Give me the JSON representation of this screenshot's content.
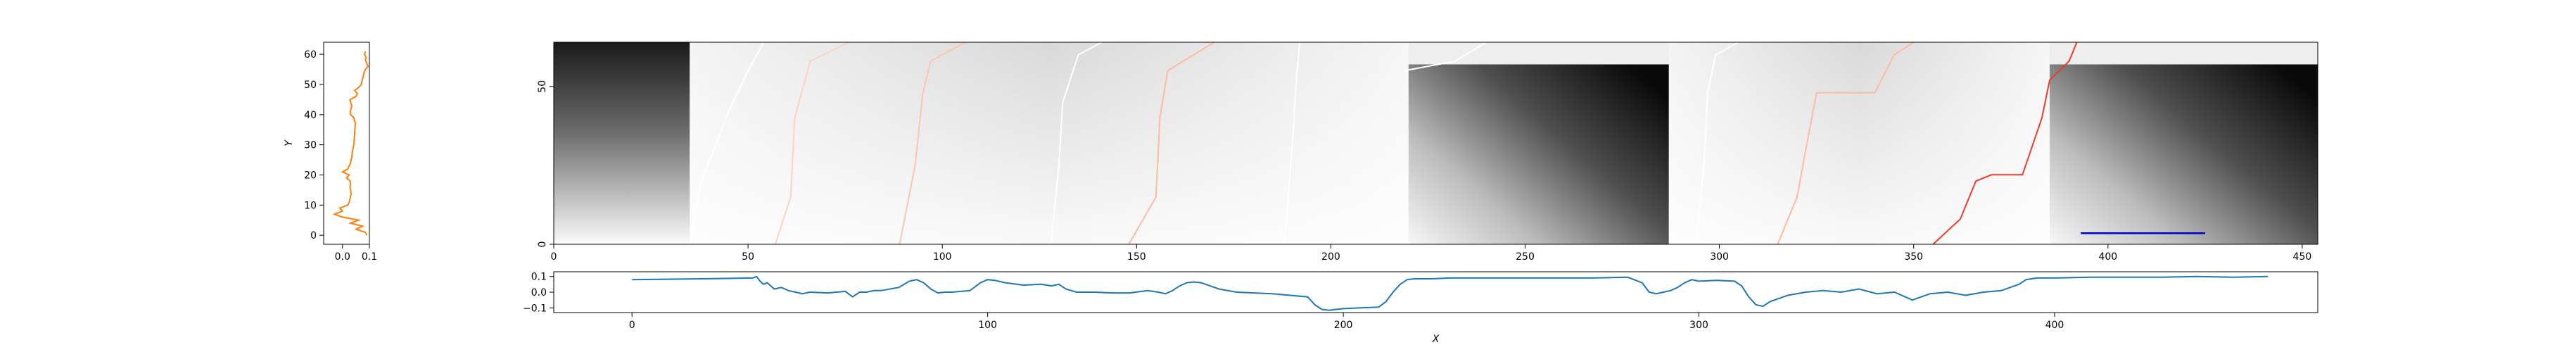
{
  "chart_data": [
    {
      "id": "y-profile",
      "type": "line",
      "xlabel": "",
      "ylabel": "Y",
      "xlim": [
        -0.07,
        0.1
      ],
      "ylim": [
        -3,
        64
      ],
      "x_ticks": [
        0.0,
        0.1
      ],
      "x_tick_labels": [
        "0.0",
        "0.1"
      ],
      "y_ticks": [
        0,
        10,
        20,
        30,
        40,
        50,
        60
      ],
      "y_tick_labels": [
        "0",
        "10",
        "20",
        "30",
        "40",
        "50",
        "60"
      ],
      "grid": false,
      "series": [
        {
          "color": "#ff7f0e",
          "y": [
            0,
            1,
            2,
            3,
            4,
            5,
            6,
            7,
            8,
            9,
            10,
            11,
            12,
            13,
            14,
            15,
            16,
            17,
            18,
            19,
            20,
            21,
            22,
            23,
            24,
            25,
            26,
            27,
            28,
            29,
            30,
            31,
            32,
            33,
            34,
            35,
            36,
            37,
            38,
            39,
            40,
            41,
            42,
            43,
            44,
            45,
            46,
            47,
            48,
            49,
            50,
            51,
            52,
            53,
            54,
            55,
            56,
            57,
            58,
            59,
            60,
            61
          ],
          "x": [
            0.09,
            0.085,
            0.05,
            0.075,
            0.03,
            0.06,
            0.0,
            -0.03,
            0.0,
            -0.01,
            0.02,
            0.025,
            0.028,
            0.03,
            0.032,
            0.03,
            0.028,
            0.03,
            0.028,
            0.015,
            0.025,
            0.0,
            0.02,
            0.025,
            0.03,
            0.032,
            0.035,
            0.036,
            0.037,
            0.04,
            0.042,
            0.043,
            0.044,
            0.045,
            0.045,
            0.046,
            0.047,
            0.048,
            0.045,
            0.042,
            0.03,
            0.028,
            0.032,
            0.035,
            0.03,
            0.028,
            0.05,
            0.055,
            0.045,
            0.06,
            0.07,
            0.072,
            0.075,
            0.078,
            0.08,
            0.085,
            0.095,
            0.09,
            0.085,
            0.088,
            0.082,
            0.085
          ]
        }
      ]
    },
    {
      "id": "alignment-heatmap",
      "type": "heatmap",
      "xlabel": "",
      "ylabel": "",
      "xlim": [
        0,
        454
      ],
      "ylim": [
        0,
        64
      ],
      "x_ticks": [
        0,
        50,
        100,
        150,
        200,
        250,
        300,
        350,
        400,
        450
      ],
      "x_tick_labels": [
        "0",
        "50",
        "100",
        "150",
        "200",
        "250",
        "300",
        "350",
        "400",
        "450"
      ],
      "y_ticks": [
        0,
        50
      ],
      "y_tick_labels": [
        "0",
        "50"
      ],
      "colormap": "greys",
      "blocks": [
        {
          "x0": 0,
          "x1": 35,
          "shade": "dark"
        },
        {
          "x0": 35,
          "x1": 220,
          "shade": "light"
        },
        {
          "x0": 220,
          "x1": 287,
          "shade": "dark"
        },
        {
          "x0": 287,
          "x1": 385,
          "shade": "light"
        },
        {
          "x0": 385,
          "x1": 454,
          "shade": "dark"
        }
      ],
      "paths": [
        {
          "color": "#ffffff",
          "points": [
            [
              35,
              0
            ],
            [
              38,
              20
            ],
            [
              45,
              42
            ],
            [
              50,
              55
            ],
            [
              54,
              64
            ]
          ]
        },
        {
          "color": "#fbd3c1",
          "points": [
            [
              57,
              0
            ],
            [
              61,
              15
            ],
            [
              62,
              40
            ],
            [
              66,
              58
            ],
            [
              76,
              64
            ]
          ]
        },
        {
          "color": "#fcc5b0",
          "points": [
            [
              89,
              0
            ],
            [
              93,
              25
            ],
            [
              95,
              48
            ],
            [
              97,
              58
            ],
            [
              106,
              64
            ]
          ]
        },
        {
          "color": "#ffffff",
          "points": [
            [
              128,
              0
            ],
            [
              130,
              25
            ],
            [
              131,
              45
            ],
            [
              135,
              60
            ],
            [
              141,
              64
            ]
          ]
        },
        {
          "color": "#fcbba1",
          "points": [
            [
              148,
              0
            ],
            [
              155,
              15
            ],
            [
              156,
              40
            ],
            [
              158,
              55
            ],
            [
              170,
              64
            ]
          ]
        },
        {
          "color": "#ffffff",
          "points": [
            [
              188,
              0
            ],
            [
              190,
              30
            ],
            [
              191,
              50
            ],
            [
              192,
              64
            ]
          ]
        },
        {
          "color": "#ffffff",
          "points": [
            [
              219,
              55
            ],
            [
              232,
              58
            ],
            [
              240,
              64
            ]
          ]
        },
        {
          "color": "#ffffff",
          "points": [
            [
              294,
              0
            ],
            [
              296,
              25
            ],
            [
              297,
              48
            ],
            [
              299,
              60
            ],
            [
              305,
              64
            ]
          ]
        },
        {
          "color": "#fcbba1",
          "points": [
            [
              315,
              0
            ],
            [
              320,
              15
            ],
            [
              323,
              35
            ],
            [
              325,
              48
            ],
            [
              340,
              48
            ],
            [
              345,
              60
            ],
            [
              350,
              64
            ]
          ]
        },
        {
          "color": "#ef3b2c",
          "points": [
            [
              355,
              0
            ],
            [
              362,
              8
            ],
            [
              366,
              20
            ],
            [
              370,
              22
            ],
            [
              378,
              22
            ],
            [
              383,
              40
            ],
            [
              385,
              52
            ],
            [
              390,
              58
            ],
            [
              392,
              64
            ]
          ]
        }
      ],
      "annotation_segment": {
        "color": "#0000cc",
        "x": [
          393,
          425
        ],
        "y": 3.5
      }
    },
    {
      "id": "x-profile",
      "type": "line",
      "xlabel": "X",
      "ylabel": "",
      "xlim": [
        -22,
        474
      ],
      "ylim": [
        -0.13,
        0.13
      ],
      "x_ticks": [
        0,
        100,
        200,
        300,
        400
      ],
      "x_tick_labels": [
        "0",
        "100",
        "200",
        "300",
        "400"
      ],
      "y_ticks": [
        -0.1,
        0.0,
        0.1
      ],
      "y_tick_labels": [
        "−0.1",
        "0.0",
        "0.1"
      ],
      "grid": false,
      "series": [
        {
          "color": "#1f77b4",
          "x": [
            0,
            20,
            34,
            35,
            36,
            37,
            38,
            40,
            42,
            44,
            46,
            48,
            50,
            55,
            60,
            62,
            64,
            66,
            68,
            70,
            75,
            78,
            80,
            82,
            84,
            86,
            88,
            90,
            95,
            98,
            100,
            102,
            105,
            110,
            115,
            118,
            120,
            122,
            125,
            130,
            135,
            140,
            145,
            148,
            150,
            152,
            154,
            156,
            158,
            160,
            165,
            170,
            175,
            180,
            185,
            190,
            192,
            194,
            196,
            198,
            200,
            205,
            210,
            212,
            214,
            216,
            218,
            220,
            225,
            230,
            240,
            250,
            260,
            270,
            280,
            284,
            286,
            288,
            290,
            292,
            294,
            296,
            298,
            300,
            305,
            310,
            312,
            314,
            316,
            318,
            320,
            325,
            330,
            335,
            340,
            345,
            350,
            355,
            360,
            365,
            370,
            375,
            380,
            385,
            390,
            392,
            395,
            400,
            410,
            420,
            430,
            440,
            450,
            460
          ],
          "y": [
            0.08,
            0.085,
            0.09,
            0.1,
            0.07,
            0.05,
            0.06,
            0.02,
            0.03,
            0.01,
            0.0,
            -0.01,
            0.0,
            -0.005,
            0.005,
            -0.03,
            0.0,
            0.0,
            0.01,
            0.01,
            0.03,
            0.07,
            0.08,
            0.06,
            0.02,
            -0.005,
            0.0,
            0.0,
            0.01,
            0.06,
            0.08,
            0.075,
            0.06,
            0.045,
            0.05,
            0.04,
            0.05,
            0.02,
            0.0,
            0.0,
            -0.005,
            -0.005,
            0.01,
            0.0,
            -0.01,
            0.01,
            0.04,
            0.06,
            0.065,
            0.06,
            0.02,
            0.0,
            -0.005,
            -0.01,
            -0.02,
            -0.03,
            -0.08,
            -0.11,
            -0.115,
            -0.11,
            -0.105,
            -0.1,
            -0.095,
            -0.06,
            0.0,
            0.05,
            0.08,
            0.085,
            0.085,
            0.09,
            0.09,
            0.09,
            0.09,
            0.09,
            0.095,
            0.06,
            0.0,
            -0.01,
            0.0,
            0.01,
            0.03,
            0.06,
            0.08,
            0.07,
            0.075,
            0.07,
            0.04,
            -0.03,
            -0.08,
            -0.09,
            -0.06,
            -0.02,
            0.0,
            0.01,
            0.0,
            0.02,
            -0.01,
            0.0,
            -0.05,
            -0.01,
            0.0,
            -0.02,
            0.0,
            0.01,
            0.05,
            0.08,
            0.09,
            0.09,
            0.095,
            0.095,
            0.095,
            0.1,
            0.095,
            0.1
          ]
        }
      ]
    }
  ]
}
